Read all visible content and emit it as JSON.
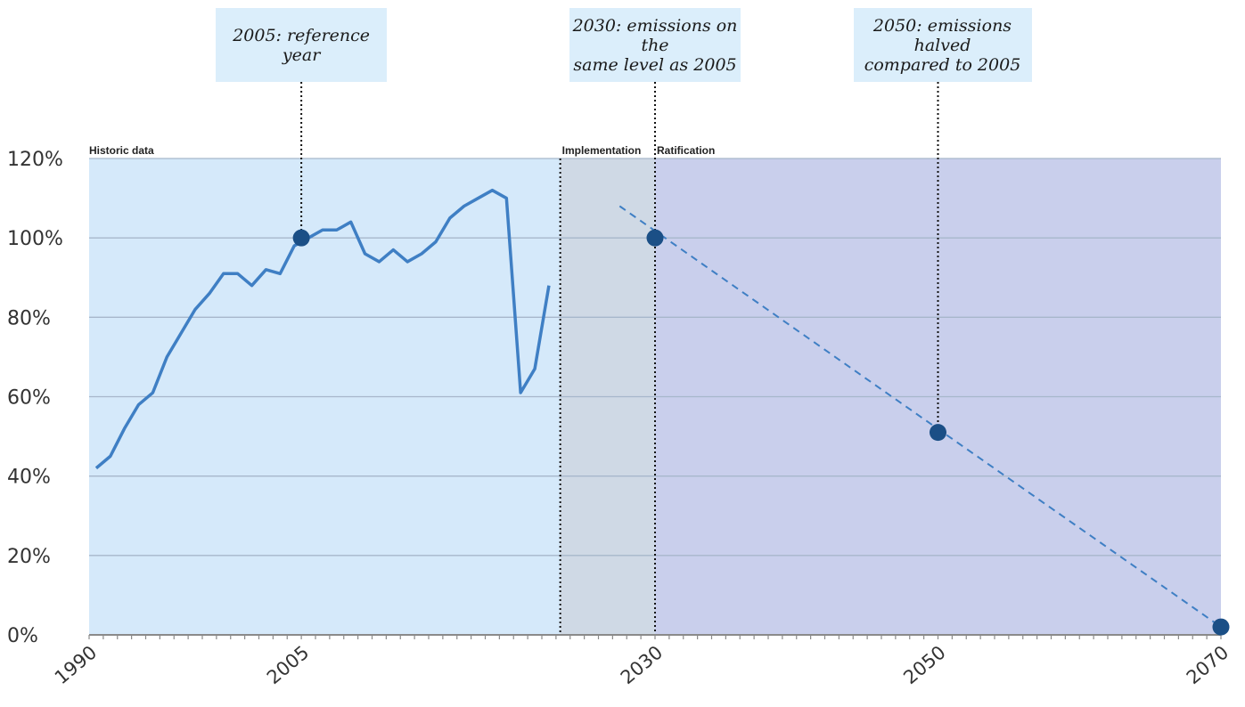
{
  "chart_data": {
    "type": "line",
    "x_axis": {
      "range": [
        1990,
        2070
      ],
      "tick_labels": [
        "1990",
        "2005",
        "2030",
        "2050",
        "2070"
      ]
    },
    "y_axis": {
      "range": [
        0,
        120
      ],
      "tick_labels": [
        "0%",
        "20%",
        "40%",
        "60%",
        "80%",
        "100%",
        "120%"
      ],
      "grid": true
    },
    "regions": [
      {
        "label": "Historic data",
        "from": 1990,
        "to": 2023.3,
        "color": "#d5e9fa"
      },
      {
        "label": "Implementation",
        "from": 2023.3,
        "to": 2030,
        "color": "#cfd9e5"
      },
      {
        "label": "Ratification",
        "from": 2030,
        "to": 2070,
        "color": "#c9cfec"
      }
    ],
    "series": [
      {
        "style": "solid",
        "color": "#3f7fc4",
        "x": [
          1990.5,
          1991.5,
          1992.5,
          1993.5,
          1994.5,
          1995.5,
          1996.5,
          1997.5,
          1998.5,
          1999.5,
          2000.5,
          2001.5,
          2002.5,
          2003.5,
          2004.5,
          2005.5,
          2006.5,
          2007.5,
          2008.5,
          2009.5,
          2010.5,
          2011.5,
          2012.5,
          2013.5,
          2014.5,
          2015.5,
          2016.5,
          2017.5,
          2018.5,
          2019.5,
          2020.5,
          2021.5,
          2022.5,
          2023.5
        ],
        "y": [
          42,
          45,
          52,
          58,
          61,
          70,
          76,
          82,
          86,
          91,
          91,
          88,
          92,
          91,
          98,
          100,
          102,
          102,
          104,
          96,
          94,
          97,
          94,
          96,
          99,
          105,
          108,
          110,
          112,
          110,
          61,
          67,
          88,
          null
        ]
      },
      {
        "style": "dashed",
        "color": "#3f7fc4",
        "x": [
          2027.5,
          2070
        ],
        "y": [
          108,
          2
        ]
      }
    ],
    "milestones": [
      {
        "x": 2005,
        "y": 100
      },
      {
        "x": 2030,
        "y": 100
      },
      {
        "x": 2050,
        "y": 51
      },
      {
        "x": 2070,
        "y": 2
      }
    ]
  },
  "callouts": [
    {
      "year": 2005,
      "lines": [
        "2005: reference year"
      ]
    },
    {
      "year": 2030,
      "lines": [
        "2030: emissions on the",
        "same level as 2005"
      ]
    },
    {
      "year": 2050,
      "lines": [
        "2050: emissions halved",
        "compared to 2005"
      ]
    }
  ]
}
